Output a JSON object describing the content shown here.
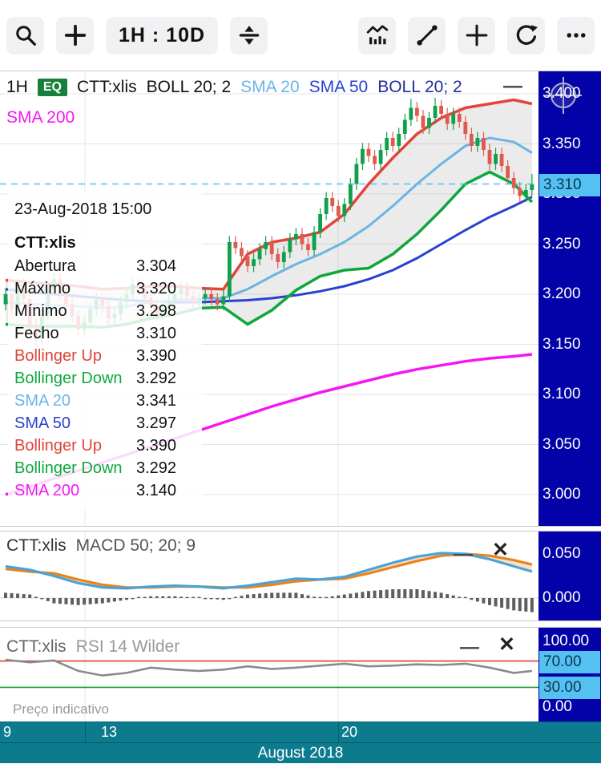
{
  "toolbar": {
    "timeframe_label": "1H : 10D",
    "icons": [
      "search-icon",
      "add-icon",
      "scale-icon",
      "chart-style-icon",
      "trend-line-icon",
      "crosshair-icon",
      "refresh-icon",
      "more-icon"
    ]
  },
  "legend": {
    "interval": "1H",
    "badge": "EQ",
    "symbol": "CTT:xlis",
    "boll1": "BOLL 20; 2",
    "sma20": "SMA 20",
    "sma50": "SMA 50",
    "boll2": "BOLL 20; 2",
    "sma200": "SMA 200"
  },
  "tooltip": {
    "datetime": "23-Aug-2018 15:00",
    "symbol": "CTT:xlis",
    "rows": [
      {
        "label": "Abertura",
        "value": "3.304",
        "color": "#111111"
      },
      {
        "label": "Máximo",
        "value": "3.320",
        "color": "#111111"
      },
      {
        "label": "Mínimo",
        "value": "3.298",
        "color": "#111111"
      },
      {
        "label": "Fecho",
        "value": "3.310",
        "color": "#111111"
      },
      {
        "label": "Bollinger Up",
        "value": "3.390",
        "color": "#e0443a"
      },
      {
        "label": "Bollinger Down",
        "value": "3.292",
        "color": "#0da83c"
      },
      {
        "label": "SMA 20",
        "value": "3.341",
        "color": "#6cb4e4"
      },
      {
        "label": "SMA 50",
        "value": "3.297",
        "color": "#2742d0"
      },
      {
        "label": "Bollinger Up",
        "value": "3.390",
        "color": "#e0443a"
      },
      {
        "label": "Bollinger Down",
        "value": "3.292",
        "color": "#0da83c"
      },
      {
        "label": "SMA 200",
        "value": "3.140",
        "color": "#f516f5"
      }
    ]
  },
  "price_axis": {
    "labels": [
      {
        "text": "3.400",
        "price": 3.4
      },
      {
        "text": "3.350",
        "price": 3.35
      },
      {
        "text": "3.300",
        "price": 3.3
      },
      {
        "text": "3.250",
        "price": 3.25
      },
      {
        "text": "3.200",
        "price": 3.2
      },
      {
        "text": "3.150",
        "price": 3.15
      },
      {
        "text": "3.100",
        "price": 3.1
      },
      {
        "text": "3.050",
        "price": 3.05
      },
      {
        "text": "3.000",
        "price": 3.0
      }
    ],
    "last_label": "3.310"
  },
  "macd_panel": {
    "symbol": "CTT:xlis",
    "indicator": "MACD 50; 20; 9",
    "axis": [
      {
        "text": "0.050",
        "v": 0.05
      },
      {
        "text": "0.000",
        "v": 0
      }
    ]
  },
  "rsi_panel": {
    "symbol": "CTT:xlis",
    "indicator": "RSI 14 Wilder",
    "footnote": "Preço indicativo",
    "axis": [
      {
        "text": "100.00",
        "v": 100,
        "chip": false
      },
      {
        "text": "70.00",
        "v": 70,
        "chip": true
      },
      {
        "text": "30.00",
        "v": 30,
        "chip": true
      },
      {
        "text": "0.00",
        "v": 0,
        "chip": false
      }
    ]
  },
  "time_axis": {
    "ticks": [
      {
        "label": "9",
        "x": 4
      },
      {
        "label": "13",
        "x": 126
      },
      {
        "label": "20",
        "x": 426
      }
    ],
    "month": "August 2018"
  },
  "colors": {
    "axis_bg": "#0202a8",
    "chip": "#54c1f0",
    "chip_text": "#0c3552",
    "candle_up": "#0ea04a",
    "candle_down": "#df5a4e",
    "boll_upper": "#e0443a",
    "boll_lower": "#0da83c",
    "sma20": "#6cb4e4",
    "sma50": "#2742d0",
    "sma200": "#f516f5",
    "macd_line": "#4aa3d8",
    "macd_signal": "#e8831c",
    "hist": "#5e5e5e",
    "rsi_line": "#8a8a8a",
    "rsi_over": "#e03c2e",
    "rsi_under": "#18a62c",
    "timebar": "#0d7b8e",
    "band_fill": "rgba(130,130,130,0.16)",
    "grid": "#e4e4e4"
  },
  "chart_data": {
    "type": "candlestick",
    "symbol": "CTT:xlis",
    "timeframe": "1H : 10D",
    "title": "CTT:xlis 1H with BOLL 20;2, SMA 20, SMA 50, SMA 200, MACD 50;20;9, RSI 14 Wilder",
    "sample_idx": [
      0,
      4,
      8,
      12,
      16,
      20,
      24,
      28,
      32,
      36,
      40,
      44,
      48,
      52,
      56,
      60,
      64,
      68,
      72,
      76,
      80,
      84,
      87
    ],
    "main": {
      "p_ref": 3.4,
      "y_ref": 28,
      "scale": 1250,
      "x0": 7,
      "dx": 7.55,
      "grid_prices": [
        3.4,
        3.35,
        3.3,
        3.25,
        3.2,
        3.15,
        3.1,
        3.05,
        3.0
      ],
      "grid_x": [
        106,
        422
      ],
      "last_price": 3.31,
      "ylim": [
        2.975,
        3.422
      ]
    },
    "candles": {
      "opens": [
        3.19,
        3.2,
        3.185,
        3.21,
        3.195,
        3.17,
        3.155,
        3.18,
        3.205,
        3.215,
        3.2,
        3.19,
        3.178,
        3.165,
        3.172,
        3.185,
        3.195,
        3.188,
        3.176,
        3.18,
        3.192,
        3.2,
        3.21,
        3.205,
        3.196,
        3.188,
        3.18,
        3.186,
        3.194,
        3.2,
        3.206,
        3.198,
        3.192,
        3.196,
        3.2,
        3.195,
        3.19,
        3.198,
        3.252,
        3.246,
        3.238,
        3.228,
        3.235,
        3.245,
        3.252,
        3.24,
        3.232,
        3.242,
        3.255,
        3.26,
        3.25,
        3.244,
        3.262,
        3.28,
        3.296,
        3.288,
        3.278,
        3.29,
        3.31,
        3.33,
        3.345,
        3.338,
        3.33,
        3.344,
        3.356,
        3.348,
        3.36,
        3.374,
        3.386,
        3.378,
        3.366,
        3.376,
        3.388,
        3.38,
        3.37,
        3.38,
        3.372,
        3.36,
        3.348,
        3.356,
        3.344,
        3.33,
        3.34,
        3.328,
        3.316,
        3.306,
        3.298,
        3.304
      ],
      "highs": [
        3.206,
        3.206,
        3.216,
        3.216,
        3.201,
        3.176,
        3.186,
        3.211,
        3.221,
        3.221,
        3.206,
        3.196,
        3.184,
        3.178,
        3.191,
        3.201,
        3.201,
        3.194,
        3.186,
        3.198,
        3.206,
        3.216,
        3.216,
        3.211,
        3.202,
        3.194,
        3.192,
        3.2,
        3.206,
        3.212,
        3.212,
        3.204,
        3.202,
        3.206,
        3.206,
        3.201,
        3.204,
        3.258,
        3.258,
        3.252,
        3.244,
        3.241,
        3.251,
        3.258,
        3.258,
        3.246,
        3.248,
        3.261,
        3.266,
        3.266,
        3.256,
        3.268,
        3.286,
        3.302,
        3.302,
        3.294,
        3.296,
        3.316,
        3.336,
        3.351,
        3.351,
        3.344,
        3.35,
        3.362,
        3.362,
        3.366,
        3.38,
        3.395,
        3.392,
        3.384,
        3.382,
        3.396,
        3.394,
        3.386,
        3.386,
        3.386,
        3.378,
        3.366,
        3.362,
        3.362,
        3.35,
        3.346,
        3.346,
        3.334,
        3.322,
        3.312,
        3.31,
        3.32
      ],
      "lows": [
        3.184,
        3.179,
        3.179,
        3.189,
        3.164,
        3.148,
        3.149,
        3.174,
        3.199,
        3.194,
        3.184,
        3.172,
        3.159,
        3.159,
        3.166,
        3.179,
        3.182,
        3.17,
        3.17,
        3.174,
        3.186,
        3.194,
        3.199,
        3.19,
        3.182,
        3.174,
        3.174,
        3.18,
        3.188,
        3.194,
        3.192,
        3.186,
        3.186,
        3.19,
        3.189,
        3.184,
        3.184,
        3.192,
        3.24,
        3.232,
        3.222,
        3.222,
        3.229,
        3.239,
        3.234,
        3.226,
        3.226,
        3.236,
        3.249,
        3.244,
        3.238,
        3.238,
        3.256,
        3.274,
        3.282,
        3.272,
        3.272,
        3.284,
        3.304,
        3.324,
        3.332,
        3.324,
        3.324,
        3.338,
        3.342,
        3.342,
        3.354,
        3.368,
        3.372,
        3.36,
        3.36,
        3.37,
        3.374,
        3.364,
        3.364,
        3.366,
        3.354,
        3.342,
        3.342,
        3.338,
        3.324,
        3.324,
        3.322,
        3.31,
        3.3,
        3.292,
        3.292,
        3.298
      ],
      "closes": [
        3.2,
        3.185,
        3.21,
        3.195,
        3.17,
        3.155,
        3.18,
        3.205,
        3.215,
        3.2,
        3.19,
        3.178,
        3.165,
        3.172,
        3.185,
        3.195,
        3.188,
        3.176,
        3.18,
        3.192,
        3.2,
        3.21,
        3.205,
        3.196,
        3.188,
        3.18,
        3.186,
        3.194,
        3.2,
        3.206,
        3.198,
        3.192,
        3.196,
        3.2,
        3.195,
        3.19,
        3.198,
        3.252,
        3.246,
        3.238,
        3.228,
        3.235,
        3.245,
        3.252,
        3.24,
        3.232,
        3.242,
        3.255,
        3.26,
        3.25,
        3.244,
        3.262,
        3.28,
        3.296,
        3.288,
        3.278,
        3.29,
        3.31,
        3.33,
        3.345,
        3.338,
        3.33,
        3.344,
        3.356,
        3.348,
        3.36,
        3.374,
        3.386,
        3.378,
        3.366,
        3.376,
        3.388,
        3.38,
        3.37,
        3.38,
        3.372,
        3.36,
        3.348,
        3.356,
        3.344,
        3.33,
        3.34,
        3.328,
        3.316,
        3.306,
        3.298,
        3.304,
        3.31
      ]
    },
    "overlays": {
      "sma20": [
        3.192,
        3.19,
        3.189,
        3.188,
        3.186,
        3.188,
        3.192,
        3.194,
        3.196,
        3.196,
        3.205,
        3.218,
        3.23,
        3.24,
        3.252,
        3.268,
        3.288,
        3.31,
        3.33,
        3.348,
        3.356,
        3.352,
        3.341
      ],
      "sma50": [
        3.205,
        3.202,
        3.2,
        3.198,
        3.196,
        3.194,
        3.193,
        3.192,
        3.192,
        3.193,
        3.194,
        3.196,
        3.199,
        3.203,
        3.208,
        3.215,
        3.224,
        3.236,
        3.25,
        3.264,
        3.277,
        3.288,
        3.297
      ],
      "sma200": [
        3.0,
        3.008,
        3.016,
        3.024,
        3.032,
        3.04,
        3.048,
        3.056,
        3.064,
        3.072,
        3.08,
        3.088,
        3.095,
        3.102,
        3.108,
        3.114,
        3.12,
        3.125,
        3.129,
        3.133,
        3.136,
        3.138,
        3.14
      ],
      "boll_upper": [
        3.214,
        3.212,
        3.21,
        3.208,
        3.205,
        3.206,
        3.208,
        3.208,
        3.206,
        3.205,
        3.24,
        3.252,
        3.256,
        3.262,
        3.28,
        3.31,
        3.336,
        3.36,
        3.376,
        3.386,
        3.39,
        3.394,
        3.39
      ],
      "boll_lower": [
        3.17,
        3.168,
        3.168,
        3.168,
        3.167,
        3.17,
        3.176,
        3.18,
        3.186,
        3.187,
        3.17,
        3.184,
        3.204,
        3.218,
        3.224,
        3.226,
        3.24,
        3.26,
        3.284,
        3.31,
        3.322,
        3.31,
        3.292
      ]
    },
    "macd": {
      "y0": 83,
      "scale": 1100,
      "macd": [
        0.036,
        0.032,
        0.025,
        0.017,
        0.012,
        0.011,
        0.013,
        0.014,
        0.013,
        0.011,
        0.014,
        0.018,
        0.022,
        0.021,
        0.024,
        0.032,
        0.04,
        0.047,
        0.051,
        0.05,
        0.044,
        0.036,
        0.03
      ],
      "signal": [
        0.033,
        0.03,
        0.028,
        0.021,
        0.015,
        0.012,
        0.012,
        0.013,
        0.013,
        0.012,
        0.012,
        0.015,
        0.019,
        0.021,
        0.022,
        0.028,
        0.035,
        0.042,
        0.048,
        0.05,
        0.048,
        0.043,
        0.038
      ]
    },
    "rsi": {
      "y0": 99,
      "scale": 0.82,
      "values": [
        72,
        68,
        71,
        55,
        48,
        52,
        60,
        57,
        55,
        57,
        62,
        58,
        60,
        63,
        66,
        62,
        63,
        65,
        64,
        66,
        60,
        52,
        55
      ],
      "overbought": 70,
      "oversold": 30
    }
  }
}
